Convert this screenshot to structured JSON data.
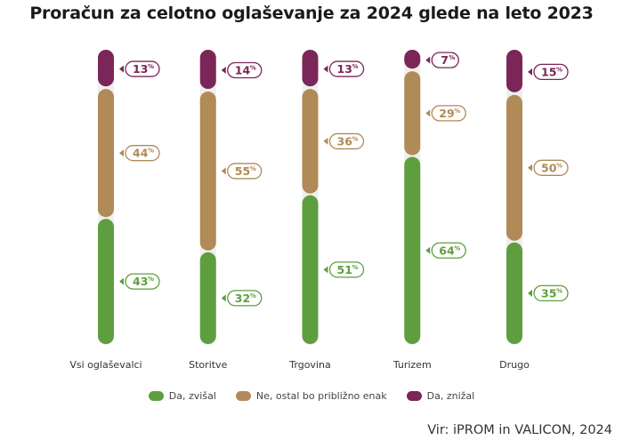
{
  "chart_data": {
    "type": "bar",
    "stacked": true,
    "title": "Proračun za celotno oglaševanje za 2024 glede na leto 2023",
    "categories": [
      "Vsi oglaševalci",
      "Storitve",
      "Trgovina",
      "Turizem",
      "Drugo"
    ],
    "series": [
      {
        "name": "Da, zvišal",
        "color": "#5f9e3f",
        "values": [
          43,
          32,
          51,
          64,
          35
        ]
      },
      {
        "name": "Ne, ostal bo približno enak",
        "color": "#b08a57",
        "values": [
          44,
          55,
          36,
          29,
          50
        ]
      },
      {
        "name": "Da, znižal",
        "color": "#7b2658",
        "values": [
          13,
          14,
          13,
          7,
          15
        ]
      }
    ],
    "unit": "%",
    "ylim": [
      0,
      100
    ],
    "xlabel": "",
    "ylabel": "",
    "grid": false,
    "legend_position": "bottom-center"
  },
  "source": "Vir: iPROM in VALICON, 2024"
}
